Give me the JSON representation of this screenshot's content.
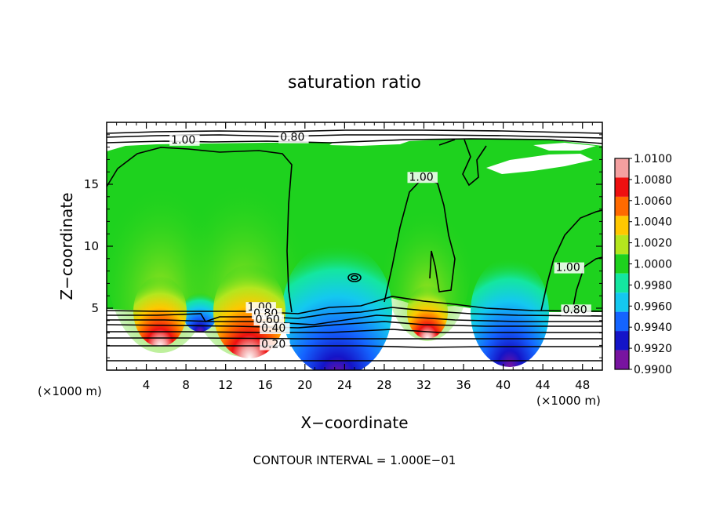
{
  "chart_data": {
    "type": "heatmap",
    "title": "saturation ratio",
    "xlabel": "X−coordinate",
    "ylabel": "Z−coordinate",
    "x_unit_left": "(×1000 m)",
    "x_unit_right": "(×1000 m)",
    "xlim": [
      0,
      50
    ],
    "ylim": [
      0,
      20
    ],
    "x_ticks": [
      4,
      8,
      12,
      16,
      20,
      24,
      28,
      32,
      36,
      40,
      44,
      48
    ],
    "x_tick_labels": [
      "4",
      "8",
      "12",
      "16",
      "20",
      "24",
      "28",
      "32",
      "36",
      "40",
      "44",
      "48"
    ],
    "y_ticks": [
      5,
      10,
      15
    ],
    "y_tick_labels": [
      "5",
      "10",
      "15"
    ],
    "colorbar": {
      "min": 0.99,
      "max": 1.01,
      "labels": [
        "1.0100",
        "1.0080",
        "1.0060",
        "1.0040",
        "1.0020",
        "1.0000",
        "0.9980",
        "0.9960",
        "0.9940",
        "0.9920",
        "0.9900"
      ],
      "colors": [
        "#f4a0a0",
        "#ee1010",
        "#ff6a00",
        "#ffc800",
        "#b4e61e",
        "#1ed21e",
        "#14e6a0",
        "#14c8f0",
        "#1464ff",
        "#1414c8",
        "#7814a0"
      ]
    },
    "contour_labels": [
      {
        "text": "1.00",
        "x": 6.5,
        "z": 18.3
      },
      {
        "text": "0.80",
        "x": 17.5,
        "z": 18.5
      },
      {
        "text": "1.00",
        "x": 30.5,
        "z": 15.3
      },
      {
        "text": "1.00",
        "x": 45.3,
        "z": 8.0
      },
      {
        "text": "1.00",
        "x": 14.2,
        "z": 4.8
      },
      {
        "text": "0.80",
        "x": 14.8,
        "z": 4.3
      },
      {
        "text": "0.60",
        "x": 15.0,
        "z": 3.8
      },
      {
        "text": "0.40",
        "x": 15.6,
        "z": 3.1
      },
      {
        "text": "0.20",
        "x": 15.6,
        "z": 1.8
      },
      {
        "text": "0.80",
        "x": 46.0,
        "z": 4.6
      }
    ],
    "contour_interval_text": "CONTOUR INTERVAL = 1.000E−01",
    "grid": false,
    "legend": "right"
  }
}
